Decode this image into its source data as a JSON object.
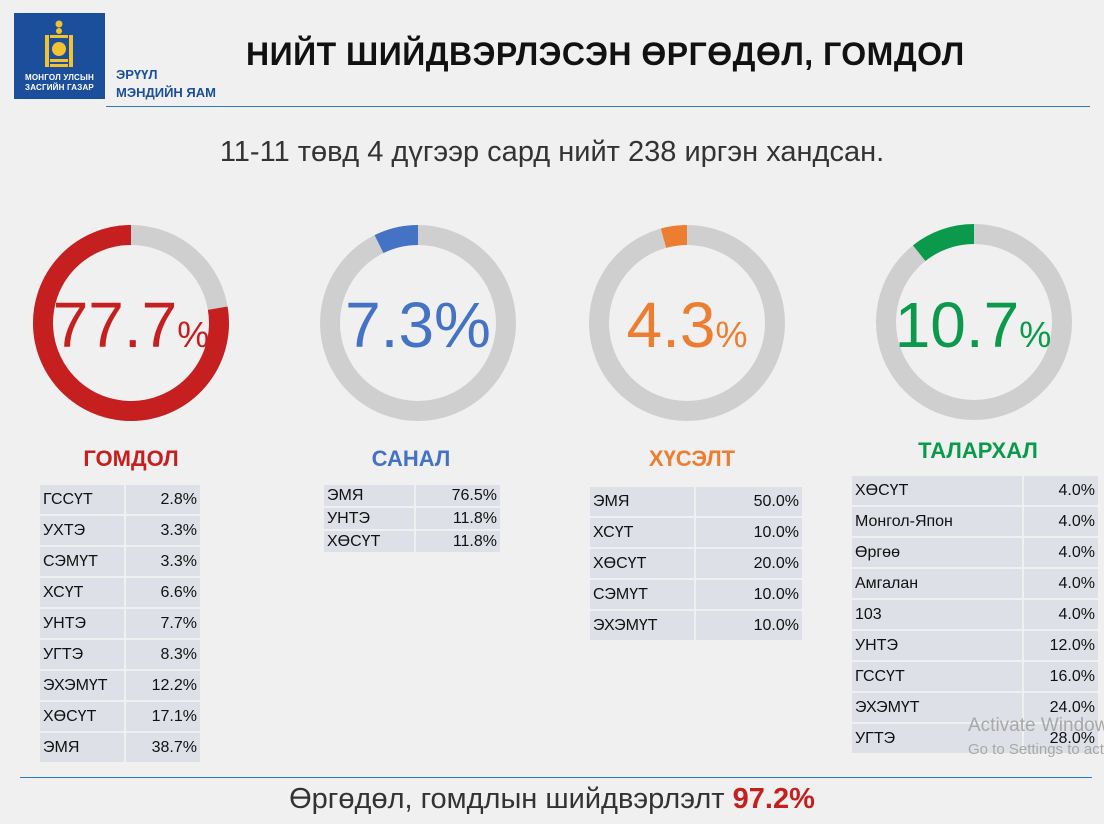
{
  "header": {
    "logo_text_line1": "МОНГОЛ УЛСЫН",
    "logo_text_line2": "ЗАСГИЙН ГАЗАР",
    "ministry_line1": "ЭРҮҮЛ",
    "ministry_line2": "МЭНДИЙН ЯАМ",
    "title": "НИЙТ ШИЙДВЭРЛЭСЭН ӨРГӨДӨЛ, ГОМДОЛ"
  },
  "subtitle": "11-11 төвд 4 дүгээр сард нийт 238 иргэн хандсан.",
  "chart_data": {
    "type": "pie",
    "categories": [
      "ГОМДОЛ",
      "САНАЛ",
      "ХҮСЭЛТ",
      "ТАЛАРХАЛ"
    ],
    "values": [
      77.7,
      7.3,
      4.3,
      10.7
    ],
    "value_labels": [
      "77.7",
      "7.3%",
      "4.3",
      "10.7"
    ],
    "colors": [
      "#c61f1f",
      "#4472c4",
      "#ed7d31",
      "#0b9a4b"
    ],
    "track_color": "#cfcfcf",
    "unit": "%"
  },
  "breakdowns": {
    "gomdol": [
      {
        "name": "ГССҮТ",
        "value": "2.8%"
      },
      {
        "name": "УХТЭ",
        "value": "3.3%"
      },
      {
        "name": "СЭМҮТ",
        "value": "3.3%"
      },
      {
        "name": "ХСҮТ",
        "value": "6.6%"
      },
      {
        "name": "УНТЭ",
        "value": "7.7%"
      },
      {
        "name": "УГТЭ",
        "value": "8.3%"
      },
      {
        "name": "ЭХЭМҮТ",
        "value": "12.2%"
      },
      {
        "name": "ХӨСҮТ",
        "value": "17.1%"
      },
      {
        "name": "ЭМЯ",
        "value": "38.7%"
      }
    ],
    "sanal": [
      {
        "name": "ЭМЯ",
        "value": "76.5%"
      },
      {
        "name": "УНТЭ",
        "value": "11.8%"
      },
      {
        "name": "ХӨСҮТ",
        "value": "11.8%"
      }
    ],
    "khuselt": [
      {
        "name": "ЭМЯ",
        "value": "50.0%"
      },
      {
        "name": "ХСҮТ",
        "value": "10.0%"
      },
      {
        "name": "ХӨСҮТ",
        "value": "20.0%"
      },
      {
        "name": "СЭМҮТ",
        "value": "10.0%"
      },
      {
        "name": "ЭХЭМҮТ",
        "value": "10.0%"
      }
    ],
    "talarkhal": [
      {
        "name": "ХӨСҮТ",
        "value": "4.0%"
      },
      {
        "name": "Монгол-Япон",
        "value": "4.0%"
      },
      {
        "name": "Өргөө",
        "value": "4.0%"
      },
      {
        "name": "Амгалан",
        "value": "4.0%"
      },
      {
        "name": "103",
        "value": "4.0%"
      },
      {
        "name": "УНТЭ",
        "value": "12.0%"
      },
      {
        "name": "ГССҮТ",
        "value": "16.0%"
      },
      {
        "name": "ЭХЭМҮТ",
        "value": "24.0%"
      },
      {
        "name": "УГТЭ",
        "value": "28.0%"
      }
    ]
  },
  "footer": {
    "text": "Өргөдөл, гомдлын шийдвэрлэлт ",
    "highlight": "97.2%"
  },
  "watermark": {
    "line1": "Activate Windows",
    "line2": "Go to Settings to activate Windows."
  }
}
